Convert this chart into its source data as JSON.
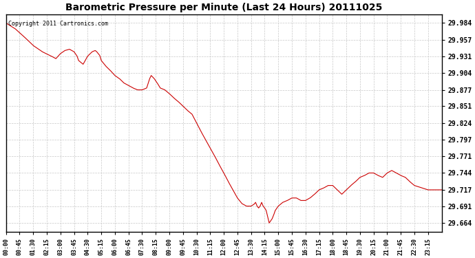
{
  "title": "Barometric Pressure per Minute (Last 24 Hours) 20111025",
  "copyright": "Copyright 2011 Cartronics.com",
  "line_color": "#cc0000",
  "background_color": "#ffffff",
  "grid_color": "#c8c8c8",
  "yticks": [
    29.664,
    29.691,
    29.717,
    29.744,
    29.771,
    29.797,
    29.824,
    29.851,
    29.877,
    29.904,
    29.931,
    29.957,
    29.984
  ],
  "ylim": [
    29.65,
    29.998
  ],
  "xlim": [
    0,
    1440
  ],
  "xtick_positions": [
    0,
    45,
    90,
    135,
    180,
    225,
    270,
    315,
    360,
    405,
    450,
    495,
    540,
    585,
    630,
    675,
    720,
    765,
    810,
    855,
    900,
    945,
    990,
    1035,
    1080,
    1125,
    1170,
    1215,
    1260,
    1305,
    1350,
    1395
  ],
  "xtick_labels": [
    "00:00",
    "00:45",
    "01:30",
    "02:15",
    "03:00",
    "03:45",
    "04:30",
    "05:15",
    "06:00",
    "06:45",
    "07:30",
    "08:15",
    "09:00",
    "09:45",
    "10:30",
    "11:15",
    "12:00",
    "12:45",
    "13:30",
    "14:15",
    "15:00",
    "15:45",
    "16:30",
    "17:15",
    "18:00",
    "18:45",
    "19:30",
    "20:15",
    "21:00",
    "21:45",
    "22:30",
    "23:15"
  ],
  "key_points": [
    [
      0,
      29.984
    ],
    [
      30,
      29.975
    ],
    [
      60,
      29.962
    ],
    [
      75,
      29.955
    ],
    [
      90,
      29.948
    ],
    [
      120,
      29.938
    ],
    [
      150,
      29.931
    ],
    [
      165,
      29.927
    ],
    [
      180,
      29.935
    ],
    [
      195,
      29.94
    ],
    [
      210,
      29.942
    ],
    [
      225,
      29.938
    ],
    [
      235,
      29.931
    ],
    [
      240,
      29.924
    ],
    [
      255,
      29.918
    ],
    [
      270,
      29.931
    ],
    [
      285,
      29.938
    ],
    [
      295,
      29.94
    ],
    [
      300,
      29.938
    ],
    [
      310,
      29.932
    ],
    [
      315,
      29.924
    ],
    [
      330,
      29.915
    ],
    [
      345,
      29.908
    ],
    [
      360,
      29.9
    ],
    [
      375,
      29.895
    ],
    [
      390,
      29.888
    ],
    [
      405,
      29.884
    ],
    [
      420,
      29.88
    ],
    [
      435,
      29.877
    ],
    [
      450,
      29.877
    ],
    [
      465,
      29.88
    ],
    [
      475,
      29.895
    ],
    [
      480,
      29.9
    ],
    [
      490,
      29.895
    ],
    [
      500,
      29.888
    ],
    [
      510,
      29.88
    ],
    [
      525,
      29.877
    ],
    [
      540,
      29.871
    ],
    [
      555,
      29.864
    ],
    [
      570,
      29.858
    ],
    [
      585,
      29.851
    ],
    [
      600,
      29.844
    ],
    [
      615,
      29.838
    ],
    [
      630,
      29.824
    ],
    [
      645,
      29.81
    ],
    [
      660,
      29.797
    ],
    [
      675,
      29.784
    ],
    [
      690,
      29.771
    ],
    [
      705,
      29.757
    ],
    [
      720,
      29.744
    ],
    [
      735,
      29.73
    ],
    [
      750,
      29.717
    ],
    [
      765,
      29.704
    ],
    [
      780,
      29.695
    ],
    [
      795,
      29.691
    ],
    [
      810,
      29.691
    ],
    [
      820,
      29.694
    ],
    [
      825,
      29.697
    ],
    [
      830,
      29.691
    ],
    [
      835,
      29.688
    ],
    [
      840,
      29.691
    ],
    [
      845,
      29.697
    ],
    [
      850,
      29.691
    ],
    [
      855,
      29.688
    ],
    [
      860,
      29.684
    ],
    [
      870,
      29.664
    ],
    [
      880,
      29.671
    ],
    [
      885,
      29.677
    ],
    [
      890,
      29.684
    ],
    [
      900,
      29.691
    ],
    [
      915,
      29.697
    ],
    [
      930,
      29.7
    ],
    [
      945,
      29.704
    ],
    [
      960,
      29.704
    ],
    [
      975,
      29.7
    ],
    [
      990,
      29.7
    ],
    [
      1005,
      29.704
    ],
    [
      1020,
      29.71
    ],
    [
      1035,
      29.717
    ],
    [
      1050,
      29.72
    ],
    [
      1065,
      29.724
    ],
    [
      1080,
      29.724
    ],
    [
      1095,
      29.717
    ],
    [
      1110,
      29.71
    ],
    [
      1125,
      29.717
    ],
    [
      1140,
      29.724
    ],
    [
      1155,
      29.73
    ],
    [
      1170,
      29.737
    ],
    [
      1185,
      29.74
    ],
    [
      1200,
      29.744
    ],
    [
      1215,
      29.744
    ],
    [
      1230,
      29.74
    ],
    [
      1245,
      29.737
    ],
    [
      1260,
      29.744
    ],
    [
      1275,
      29.748
    ],
    [
      1290,
      29.744
    ],
    [
      1305,
      29.74
    ],
    [
      1320,
      29.737
    ],
    [
      1335,
      29.73
    ],
    [
      1350,
      29.724
    ],
    [
      1395,
      29.717
    ],
    [
      1440,
      29.717
    ]
  ]
}
